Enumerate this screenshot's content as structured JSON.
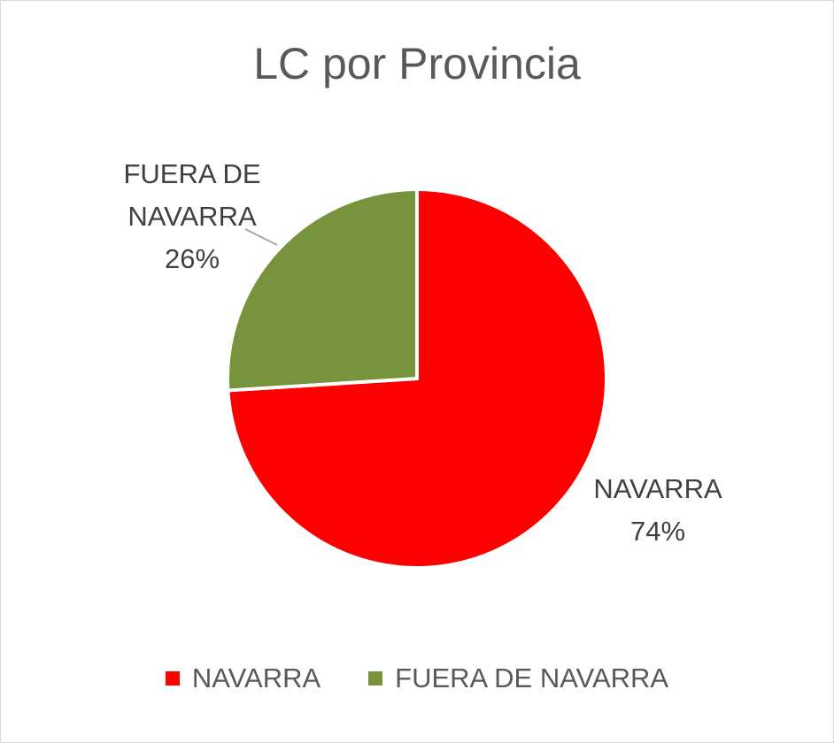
{
  "chart_data": {
    "type": "pie",
    "title": "LC por Provincia",
    "categories": [
      "NAVARRA",
      "FUERA DE NAVARRA"
    ],
    "values": [
      74,
      26
    ],
    "unit": "%",
    "colors": [
      "#ff0000",
      "#77933c"
    ],
    "slice_labels": [
      {
        "name": "NAVARRA",
        "lines": [
          "NAVARRA"
        ],
        "percent": "74%"
      },
      {
        "name": "FUERA DE NAVARRA",
        "lines": [
          "FUERA DE",
          "NAVARRA"
        ],
        "percent": "26%"
      }
    ],
    "legend": {
      "position": "bottom",
      "items": [
        "NAVARRA",
        "FUERA DE NAVARRA"
      ]
    }
  }
}
